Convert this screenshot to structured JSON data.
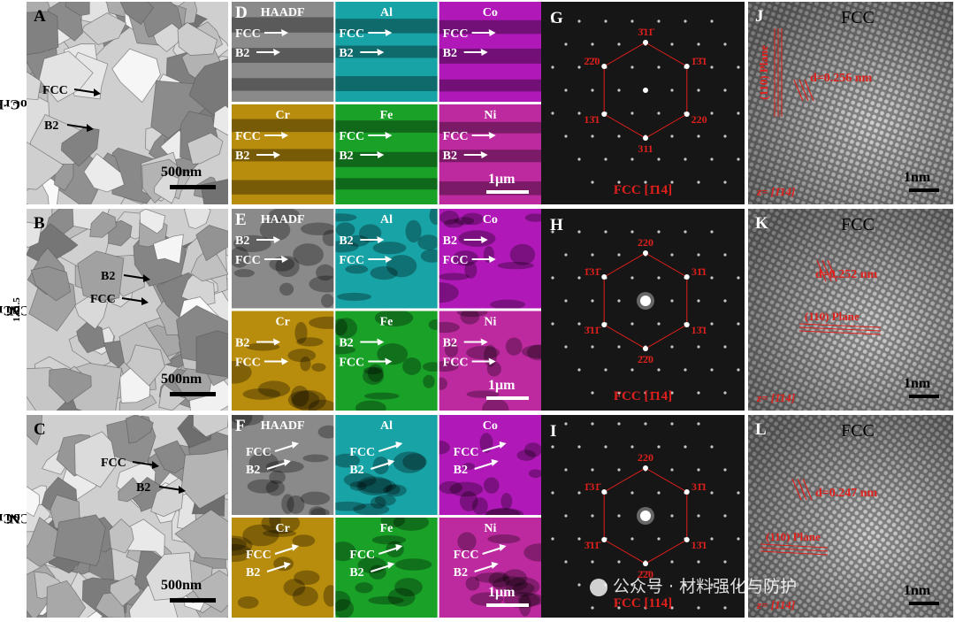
{
  "rows": [
    {
      "alloy": "AlCoCrFeNi",
      "sub": "2",
      "alloy_b": "",
      "sub_b": ""
    },
    {
      "alloy": "AlCoCrFe",
      "sub": "1.5",
      "alloy_b": "Ni",
      "sub_b": "1.5"
    },
    {
      "alloy": "AlCoCrFe",
      "sub": "2",
      "alloy_b": "Ni",
      "sub_b": ""
    }
  ],
  "bf": [
    {
      "letter": "A",
      "scale": "500nm",
      "labels": [
        "FCC",
        "B2"
      ]
    },
    {
      "letter": "B",
      "scale": "500nm",
      "labels": [
        "B2",
        "FCC"
      ]
    },
    {
      "letter": "C",
      "scale": "500nm",
      "labels": [
        "FCC",
        "B2"
      ]
    }
  ],
  "eds": [
    {
      "letter": "D",
      "tiles": [
        "HAADF",
        "Al",
        "Co",
        "Cr",
        "Fe",
        "Ni"
      ],
      "order": [
        "FCC",
        "B2"
      ],
      "scale": "1μm"
    },
    {
      "letter": "E",
      "tiles": [
        "HAADF",
        "Al",
        "Co",
        "Cr",
        "Fe",
        "Ni"
      ],
      "order": [
        "B2",
        "FCC"
      ],
      "scale": "1μm"
    },
    {
      "letter": "F",
      "tiles": [
        "HAADF",
        "Al",
        "Co",
        "Cr",
        "Fe",
        "Ni"
      ],
      "order": [
        "FCC",
        "B2"
      ],
      "scale": "1μm"
    }
  ],
  "colors": {
    "HAADF": "#8a8a8a",
    "Al": "#18a3a6",
    "Co": "#b019b8",
    "Cr": "#b88c0c",
    "Fe": "#19a128",
    "Ni": "#bd2aa0",
    "annot": "#e0201c"
  },
  "saed": [
    {
      "letter": "G",
      "zone": "FCC [1̄14]",
      "spots": [
        "3̄11̄",
        "1̄3̄1",
        "220",
        "311",
        "13̄1",
        "2̄2̄0"
      ]
    },
    {
      "letter": "H",
      "zone": "FCC [1̄14]",
      "spots": [
        "220",
        "31̄1",
        "13̄1",
        "2̄2̄0",
        "3̄11̄",
        "1̄31̄"
      ]
    },
    {
      "letter": "I",
      "zone": "FCC [114]",
      "spots": [
        "220",
        "31̄1",
        "13̄1",
        "2̄2̄0",
        "3̄11̄",
        "1̄31̄"
      ]
    }
  ],
  "hrtem": [
    {
      "letter": "J",
      "phase": "FCC",
      "d": "d=0.256 nm",
      "plane": "(110) Plane",
      "zone": "z= [1̄14]",
      "scale": "1nm"
    },
    {
      "letter": "K",
      "phase": "FCC",
      "d": "d=0.252 nm",
      "plane": "(110) Plane",
      "zone": "z= [1̄14]",
      "scale": "1nm"
    },
    {
      "letter": "L",
      "phase": "FCC",
      "d": "d=0.247 nm",
      "plane": "(110) Plane",
      "zone": "z= [114]",
      "scale": "1nm"
    }
  ],
  "watermark": "公众号 · 材料强化与防护"
}
